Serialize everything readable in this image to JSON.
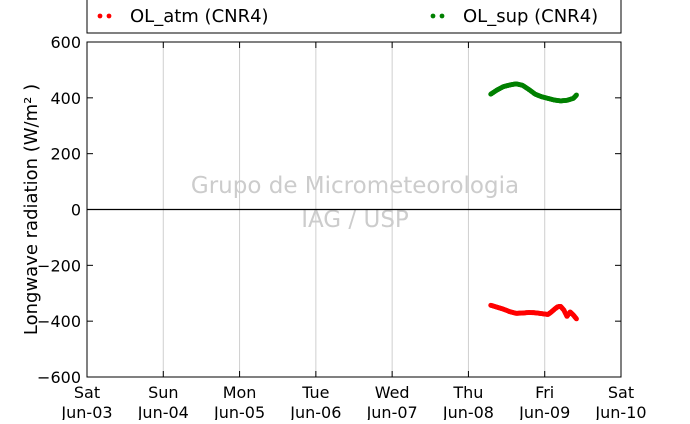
{
  "chart_data": {
    "type": "scatter",
    "title": "",
    "ylabel": "Longwave radiation (W/m² )",
    "xlabel": "",
    "ylim": [
      -600,
      600
    ],
    "yticks": [
      -600,
      -400,
      -200,
      0,
      200,
      400,
      600
    ],
    "ytick_labels": [
      "−600",
      "−400",
      "−200",
      "0",
      "200",
      "400",
      "600"
    ],
    "xlim": [
      "2017-06-03",
      "2017-06-10"
    ],
    "xticks": [
      {
        "day": "Sat",
        "date": "Jun-03"
      },
      {
        "day": "Sun",
        "date": "Jun-04"
      },
      {
        "day": "Mon",
        "date": "Jun-05"
      },
      {
        "day": "Tue",
        "date": "Jun-06"
      },
      {
        "day": "Wed",
        "date": "Jun-07"
      },
      {
        "day": "Thu",
        "date": "Jun-08"
      },
      {
        "day": "Fri",
        "date": "Jun-09"
      },
      {
        "day": "Sat",
        "date": "Jun-10"
      }
    ],
    "grid": true,
    "zero_line": true,
    "legend_position": "top, outside above plot",
    "watermark": [
      "Grupo de Micrometeorologia",
      "IAG / USP"
    ],
    "series": [
      {
        "name": "OL_atm (CNR4)",
        "color": "#ff0000",
        "x": [
          "2017-06-08 07:00",
          "2017-06-08 09:00",
          "2017-06-08 11:00",
          "2017-06-08 13:00",
          "2017-06-08 15:00",
          "2017-06-08 17:00",
          "2017-06-08 19:00",
          "2017-06-08 21:00",
          "2017-06-08 23:00",
          "2017-06-09 01:00",
          "2017-06-09 02:00",
          "2017-06-09 03:00",
          "2017-06-09 04:00",
          "2017-06-09 05:00",
          "2017-06-09 06:00",
          "2017-06-09 07:00",
          "2017-06-09 08:00",
          "2017-06-09 09:00",
          "2017-06-09 10:00"
        ],
        "y": [
          -343,
          -350,
          -357,
          -366,
          -372,
          -371,
          -369,
          -370,
          -373,
          -376,
          -368,
          -358,
          -349,
          -347,
          -360,
          -383,
          -367,
          -378,
          -392
        ]
      },
      {
        "name": "OL_sup (CNR4)",
        "color": "#008000",
        "x": [
          "2017-06-08 07:00",
          "2017-06-08 09:00",
          "2017-06-08 11:00",
          "2017-06-08 13:00",
          "2017-06-08 15:00",
          "2017-06-08 17:00",
          "2017-06-08 19:00",
          "2017-06-08 21:00",
          "2017-06-08 23:00",
          "2017-06-09 01:00",
          "2017-06-09 03:00",
          "2017-06-09 05:00",
          "2017-06-09 07:00",
          "2017-06-09 09:00",
          "2017-06-09 10:00"
        ],
        "y": [
          413,
          428,
          440,
          446,
          450,
          445,
          430,
          413,
          404,
          398,
          392,
          389,
          391,
          398,
          410
        ]
      }
    ]
  }
}
